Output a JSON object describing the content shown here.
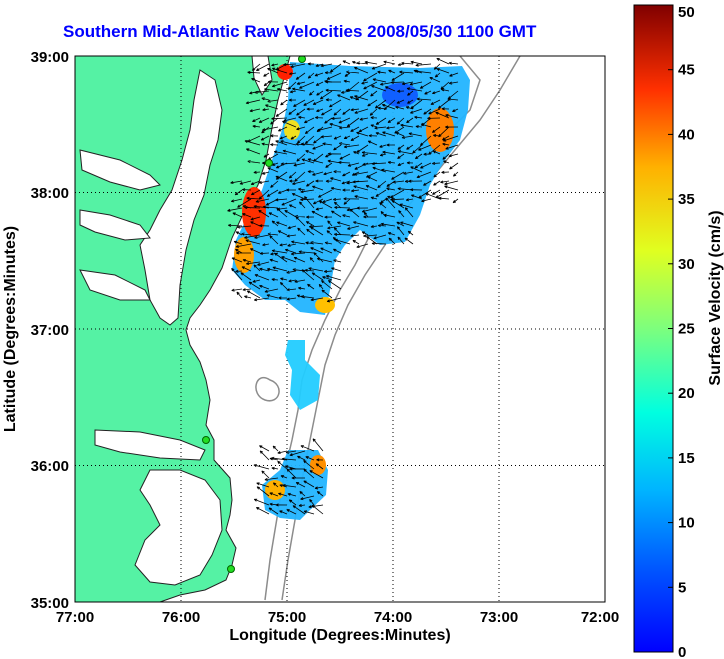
{
  "title": "Southern Mid-Atlantic Raw Velocities 2008/05/30 1100 GMT",
  "map": {
    "xlabel": "Longitude (Degrees:Minutes)",
    "ylabel": "Latitude (Degrees:Minutes)",
    "x_ticks": [
      "77:00",
      "76:00",
      "75:00",
      "74:00",
      "73:00",
      "72:00"
    ],
    "y_ticks": [
      "39:00",
      "38:00",
      "37:00",
      "36:00",
      "35:00"
    ],
    "xlim": [
      -77,
      -72
    ],
    "ylim": [
      35,
      39
    ],
    "grid": "dotted",
    "land_color": "#55f2a4",
    "coast_color": "#222222",
    "bathymetry_color": "#8c8c8c",
    "station_color": "#22dd22"
  },
  "colorbar": {
    "label": "Surface Velocity (cm/s)",
    "ticks": [
      "0",
      "5",
      "10",
      "15",
      "20",
      "25",
      "30",
      "35",
      "40",
      "45",
      "50"
    ],
    "range": [
      0,
      50
    ],
    "colormap": "jet"
  }
}
